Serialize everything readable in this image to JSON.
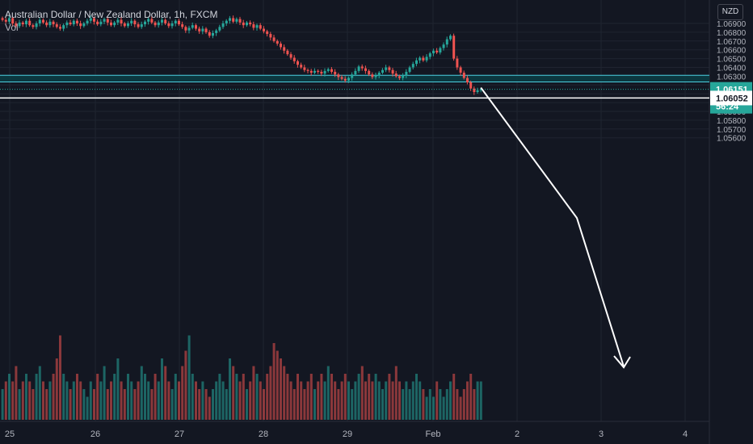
{
  "legend": {
    "title": "Australian Dollar / New Zealand Dollar, 1h, FXCM",
    "vol_label": "Vol"
  },
  "currency_badge": "NZD",
  "colors": {
    "bg": "#131722",
    "up": "#26a69a",
    "down": "#ef5350",
    "zone": "#0b3d44",
    "zone_line": "#4dd0e1",
    "grid": "#1f2430",
    "axis_text": "#b2b5be",
    "white": "#ffffff"
  },
  "chart_data": {
    "type": "candlestick",
    "symbol": "AUD/NZD",
    "timeframe": "1h",
    "y_axis": {
      "ticks": [
        1.069,
        1.068,
        1.067,
        1.066,
        1.065,
        1.064,
        1.063,
        1.062,
        1.061,
        1.06,
        1.059,
        1.058,
        1.057,
        1.056
      ],
      "tick_labels": [
        "1.06900",
        "1.06800",
        "1.06700",
        "1.06600",
        "1.06500",
        "1.06400",
        "1.06300",
        "1.06200",
        "1.06100",
        "1.06000",
        "1.05900",
        "1.05800",
        "1.05700",
        "1.05600"
      ],
      "range": [
        1.0555,
        1.0695
      ]
    },
    "x_axis": {
      "labels": [
        "25",
        "26",
        "27",
        "28",
        "29",
        "Feb",
        "2",
        "3",
        "4"
      ]
    },
    "price_labels": {
      "last_price": "1.06151",
      "countdown": "56:24",
      "level": "1.06052"
    },
    "zone": {
      "top": 1.0631,
      "bottom": 1.06235
    },
    "horizontal_level": 1.06052,
    "closes": [
      1.0694,
      1.0692,
      1.0696,
      1.069,
      1.0687,
      1.0691,
      1.0689,
      1.0693,
      1.0688,
      1.0686,
      1.069,
      1.0694,
      1.0691,
      1.0688,
      1.0692,
      1.0689,
      1.0686,
      1.0684,
      1.0688,
      1.0691,
      1.0689,
      1.0693,
      1.069,
      1.0687,
      1.069,
      1.0693,
      1.0696,
      1.0692,
      1.0689,
      1.0692,
      1.0695,
      1.0691,
      1.0688,
      1.0691,
      1.0694,
      1.069,
      1.0687,
      1.069,
      1.0693,
      1.0689,
      1.0686,
      1.0689,
      1.0692,
      1.0695,
      1.0691,
      1.0688,
      1.0691,
      1.0694,
      1.069,
      1.0687,
      1.069,
      1.0693,
      1.0689,
      1.0686,
      1.0682,
      1.0685,
      1.0688,
      1.0684,
      1.0681,
      1.0684,
      1.068,
      1.0676,
      1.0679,
      1.0682,
      1.0686,
      1.069,
      1.0693,
      1.0696,
      1.0692,
      1.0695,
      1.0691,
      1.0688,
      1.0691,
      1.0689,
      1.0685,
      1.0688,
      1.0684,
      1.0681,
      1.0678,
      1.0674,
      1.067,
      1.0667,
      1.0663,
      1.0659,
      1.0655,
      1.0651,
      1.0647,
      1.0643,
      1.064,
      1.0637,
      1.0636,
      1.0634,
      1.0636,
      1.0635,
      1.0633,
      1.0636,
      1.0638,
      1.0635,
      1.0632,
      1.0629,
      1.0627,
      1.0625,
      1.0628,
      1.0632,
      1.0636,
      1.0641,
      1.0639,
      1.0636,
      1.0632,
      1.0629,
      1.0631,
      1.0634,
      1.0637,
      1.064,
      1.0637,
      1.0633,
      1.063,
      1.0628,
      1.0631,
      1.0635,
      1.064,
      1.0644,
      1.0648,
      1.0651,
      1.0648,
      1.0652,
      1.0656,
      1.0659,
      1.0657,
      1.0662,
      1.0666,
      1.0672,
      1.0676,
      1.065,
      1.064,
      1.0634,
      1.0628,
      1.0623,
      1.0616,
      1.0612,
      1.0614,
      1.0615
    ],
    "volume": [
      4,
      5,
      6,
      5,
      7,
      4,
      5,
      6,
      5,
      4,
      6,
      7,
      5,
      4,
      5,
      6,
      8,
      11,
      6,
      5,
      4,
      5,
      6,
      5,
      4,
      3,
      5,
      4,
      6,
      5,
      7,
      4,
      5,
      6,
      8,
      5,
      4,
      6,
      5,
      4,
      5,
      7,
      6,
      5,
      4,
      6,
      5,
      8,
      7,
      5,
      4,
      6,
      5,
      7,
      9,
      11,
      6,
      5,
      4,
      5,
      4,
      3,
      4,
      5,
      6,
      5,
      4,
      8,
      7,
      6,
      5,
      6,
      4,
      5,
      7,
      6,
      5,
      4,
      6,
      7,
      10,
      9,
      8,
      7,
      6,
      5,
      4,
      6,
      5,
      4,
      5,
      6,
      4,
      5,
      6,
      5,
      7,
      6,
      5,
      4,
      5,
      6,
      5,
      4,
      5,
      6,
      7,
      5,
      6,
      5,
      6,
      5,
      4,
      5,
      6,
      5,
      7,
      5,
      4,
      5,
      4,
      5,
      6,
      5,
      4,
      3,
      4,
      3,
      5,
      4,
      3,
      4,
      5,
      6,
      4,
      3,
      4,
      5,
      6,
      4,
      5,
      5
    ]
  }
}
